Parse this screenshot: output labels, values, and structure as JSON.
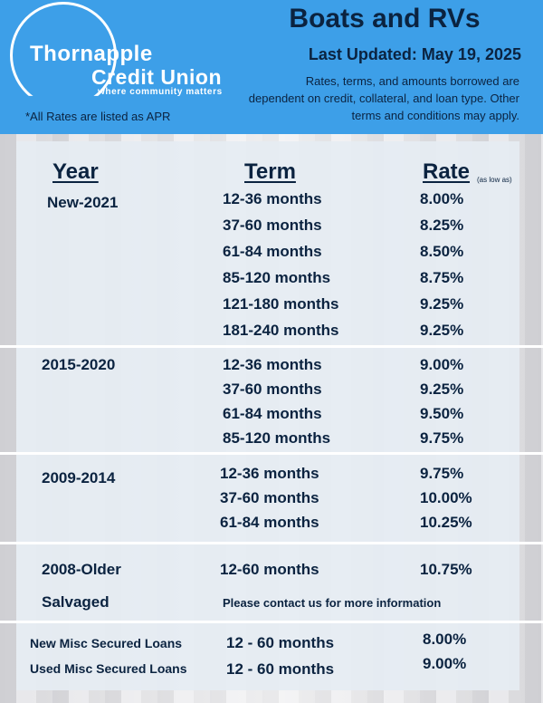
{
  "logo": {
    "line1": "Thornapple",
    "line2": "Credit Union",
    "tagline": "where community matters"
  },
  "apr_note": "*All Rates are listed as APR",
  "title": "Boats and RVs",
  "last_updated": "Last Updated: May 19, 2025",
  "disclaimer": "Rates, terms, and amounts borrowed are dependent on credit, collateral, and loan type. Other terms and conditions may apply.",
  "table": {
    "headers": {
      "year": "Year",
      "term": "Term",
      "rate": "Rate",
      "rate_note": "(as low as)"
    },
    "groups": [
      {
        "year": "New-2021",
        "rows": [
          {
            "term": "12-36 months",
            "rate": "8.00%"
          },
          {
            "term": "37-60 months",
            "rate": "8.25%"
          },
          {
            "term": "61-84 months",
            "rate": "8.50%"
          },
          {
            "term": "85-120 months",
            "rate": "8.75%"
          },
          {
            "term": "121-180 months",
            "rate": "9.25%"
          },
          {
            "term": "181-240 months",
            "rate": "9.25%"
          }
        ]
      },
      {
        "year": "2015-2020",
        "rows": [
          {
            "term": "12-36 months",
            "rate": "9.00%"
          },
          {
            "term": "37-60 months",
            "rate": "9.25%"
          },
          {
            "term": "61-84 months",
            "rate": "9.50%"
          },
          {
            "term": "85-120 months",
            "rate": "9.75%"
          }
        ]
      },
      {
        "year": "2009-2014",
        "rows": [
          {
            "term": "12-36 months",
            "rate": "9.75%"
          },
          {
            "term": "37-60 months",
            "rate": "10.00%"
          },
          {
            "term": "61-84 months",
            "rate": "10.25%"
          }
        ]
      },
      {
        "year": "2008-Older",
        "rows": [
          {
            "term": "12-60 months",
            "rate": "10.75%"
          }
        ]
      }
    ],
    "salvaged": {
      "label": "Salvaged",
      "note": "Please contact us for more information"
    },
    "misc": [
      {
        "label": "New Misc Secured Loans",
        "term": "12 - 60 months",
        "rate": "8.00%"
      },
      {
        "label": "Used Misc Secured Loans",
        "term": "12 - 60 months",
        "rate": "9.00%"
      }
    ]
  },
  "colors": {
    "header_bg": "#3d9fe8",
    "text_navy": "#0b2340",
    "card_bg": "#e6ecf2"
  }
}
